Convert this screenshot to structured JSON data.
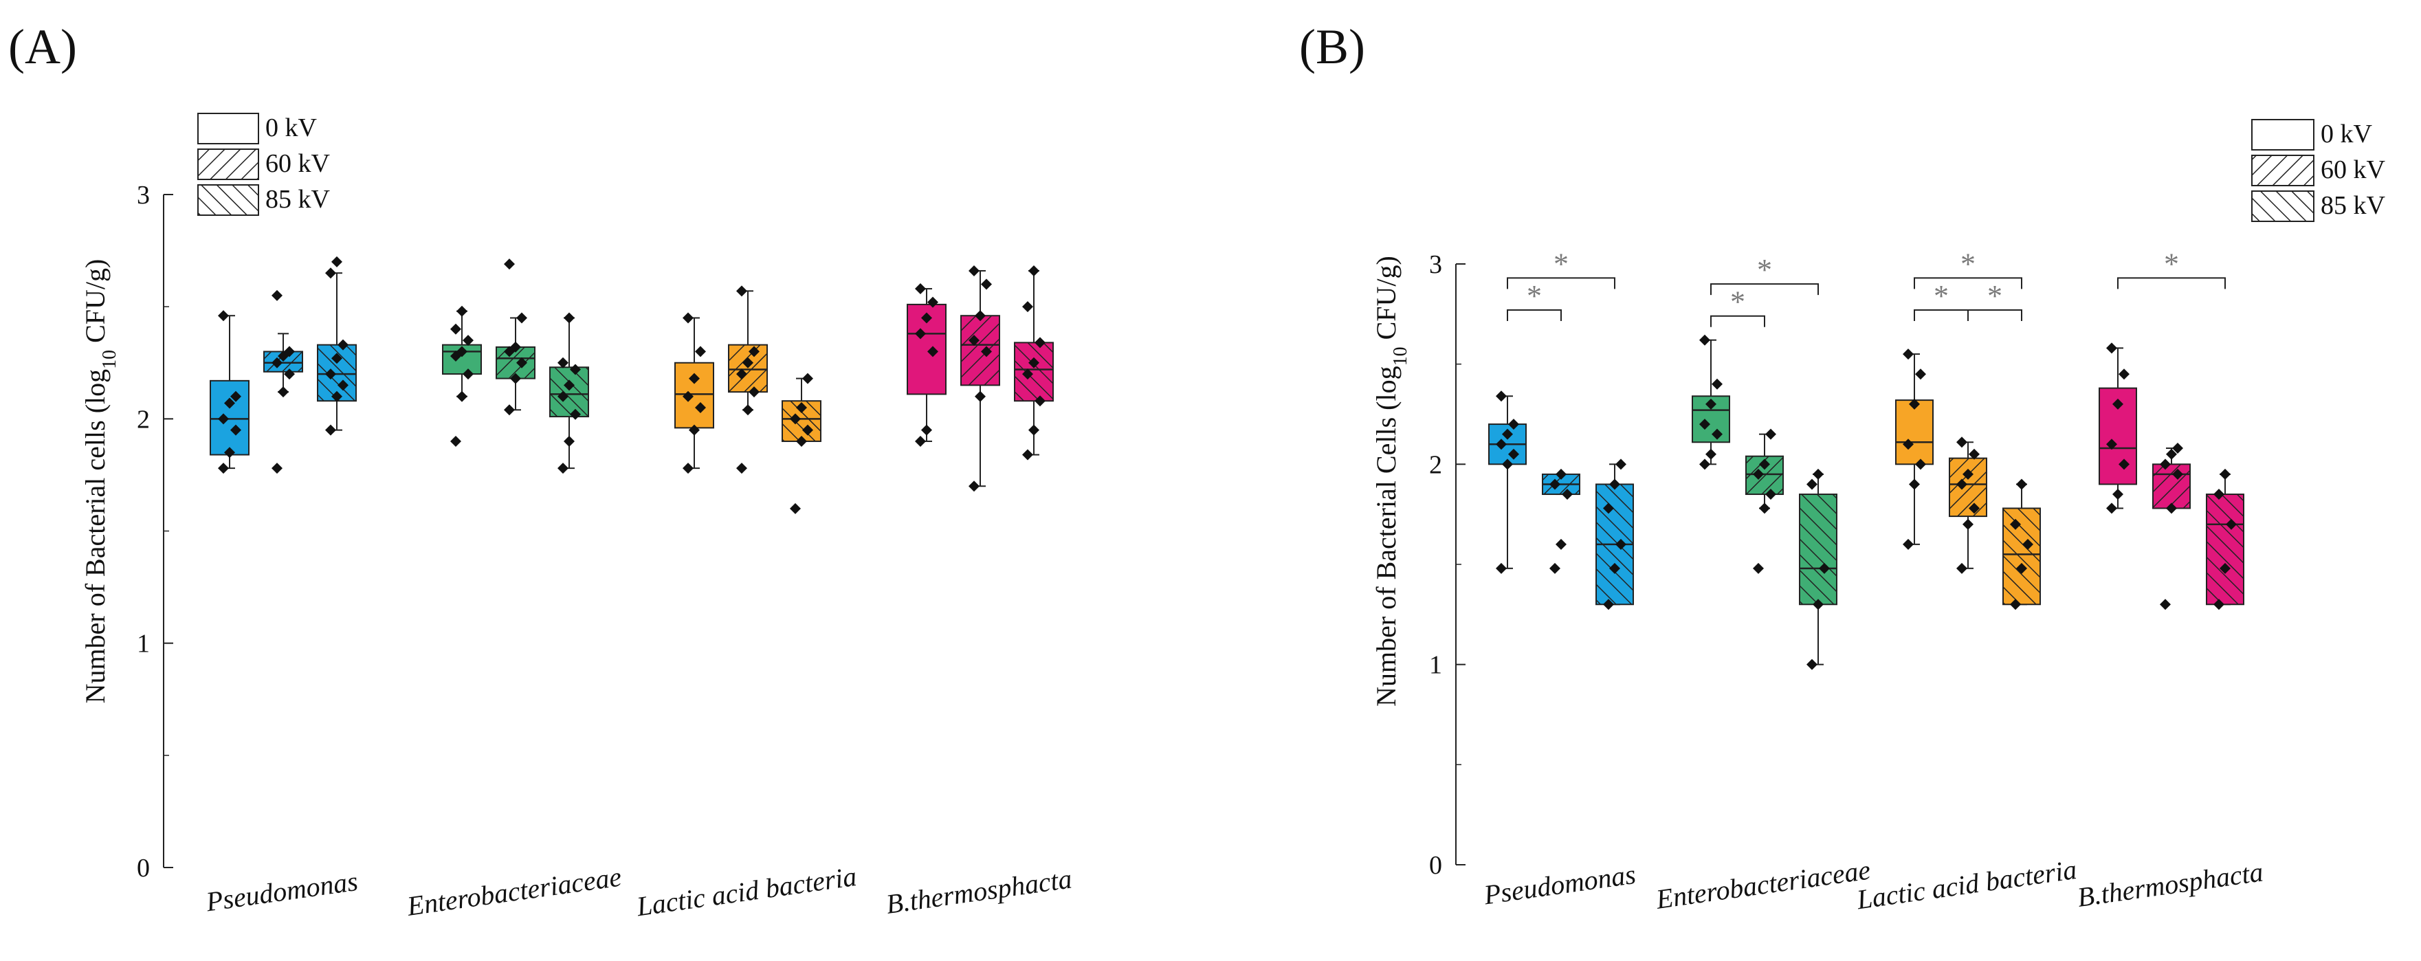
{
  "colors": {
    "Pseudomonas": "#1ba3e0",
    "Enterobacteriaceae": "#3fae74",
    "Lactic acid bacteria": "#f7a526",
    "B.thermosphacta": "#e0177b"
  },
  "chart_data": [
    {
      "panel": "(A)",
      "type": "box",
      "ylabel_main": "Number of Bacterial cells (log",
      "ylabel_sub": "10",
      "ylabel_tail": " CFU/g)",
      "ylim": [
        0,
        3
      ],
      "yticks": [
        "0",
        "1",
        "2",
        "3"
      ],
      "legend_position": "top-left",
      "legend": [
        "0 kV",
        "60 kV",
        "85 kV"
      ],
      "categories": [
        "Pseudomonas",
        "Enterobacteriaceae",
        "Lactic acid bacteria",
        "B.thermosphacta"
      ],
      "boxes": [
        {
          "category": "Pseudomonas",
          "voltage": "0 kV",
          "whisker_low": 1.78,
          "q1": 1.84,
          "median": 2.0,
          "q3": 2.17,
          "whisker_high": 2.46,
          "points": [
            1.78,
            1.85,
            1.95,
            2.0,
            2.07,
            2.1,
            2.46
          ]
        },
        {
          "category": "Pseudomonas",
          "voltage": "60 kV",
          "whisker_low": 2.12,
          "q1": 2.21,
          "median": 2.25,
          "q3": 2.3,
          "whisker_high": 2.38,
          "points": [
            1.78,
            2.12,
            2.2,
            2.25,
            2.28,
            2.3,
            2.55
          ]
        },
        {
          "category": "Pseudomonas",
          "voltage": "85 kV",
          "whisker_low": 1.95,
          "q1": 2.08,
          "median": 2.2,
          "q3": 2.33,
          "whisker_high": 2.65,
          "points": [
            1.95,
            2.1,
            2.15,
            2.2,
            2.27,
            2.33,
            2.65,
            2.7
          ]
        },
        {
          "category": "Enterobacteriaceae",
          "voltage": "0 kV",
          "whisker_low": 2.1,
          "q1": 2.2,
          "median": 2.3,
          "q3": 2.33,
          "whisker_high": 2.48,
          "points": [
            1.9,
            2.1,
            2.2,
            2.28,
            2.3,
            2.35,
            2.4,
            2.48
          ]
        },
        {
          "category": "Enterobacteriaceae",
          "voltage": "60 kV",
          "whisker_low": 2.04,
          "q1": 2.18,
          "median": 2.27,
          "q3": 2.32,
          "whisker_high": 2.45,
          "points": [
            2.04,
            2.18,
            2.25,
            2.3,
            2.32,
            2.45,
            2.69
          ]
        },
        {
          "category": "Enterobacteriaceae",
          "voltage": "85 kV",
          "whisker_low": 1.78,
          "q1": 2.01,
          "median": 2.11,
          "q3": 2.23,
          "whisker_high": 2.45,
          "points": [
            1.78,
            1.9,
            2.02,
            2.1,
            2.15,
            2.22,
            2.25,
            2.45
          ]
        },
        {
          "category": "Lactic acid bacteria",
          "voltage": "0 kV",
          "whisker_low": 1.78,
          "q1": 1.96,
          "median": 2.11,
          "q3": 2.25,
          "whisker_high": 2.45,
          "points": [
            1.78,
            1.95,
            2.05,
            2.1,
            2.18,
            2.3,
            2.45
          ]
        },
        {
          "category": "Lactic acid bacteria",
          "voltage": "60 kV",
          "whisker_low": 2.04,
          "q1": 2.12,
          "median": 2.22,
          "q3": 2.33,
          "whisker_high": 2.57,
          "points": [
            1.78,
            2.04,
            2.12,
            2.2,
            2.25,
            2.3,
            2.57
          ]
        },
        {
          "category": "Lactic acid bacteria",
          "voltage": "85 kV",
          "whisker_low": 1.9,
          "q1": 1.9,
          "median": 2.0,
          "q3": 2.08,
          "whisker_high": 2.18,
          "points": [
            1.6,
            1.9,
            1.95,
            2.0,
            2.05,
            2.18
          ]
        },
        {
          "category": "B.thermosphacta",
          "voltage": "0 kV",
          "whisker_low": 1.9,
          "q1": 2.11,
          "median": 2.38,
          "q3": 2.51,
          "whisker_high": 2.58,
          "points": [
            1.9,
            1.95,
            2.3,
            2.38,
            2.45,
            2.52,
            2.58
          ]
        },
        {
          "category": "B.thermosphacta",
          "voltage": "60 kV",
          "whisker_low": 1.7,
          "q1": 2.15,
          "median": 2.33,
          "q3": 2.46,
          "whisker_high": 2.66,
          "points": [
            1.7,
            2.1,
            2.3,
            2.35,
            2.46,
            2.6,
            2.66
          ]
        },
        {
          "category": "B.thermosphacta",
          "voltage": "85 kV",
          "whisker_low": 1.84,
          "q1": 2.08,
          "median": 2.22,
          "q3": 2.34,
          "whisker_high": 2.66,
          "points": [
            1.84,
            1.95,
            2.08,
            2.2,
            2.25,
            2.34,
            2.5,
            2.66
          ]
        }
      ],
      "significance": []
    },
    {
      "panel": "(B)",
      "type": "box",
      "ylabel_main": "Number of Bacterial Cells (log",
      "ylabel_sub": "10",
      "ylabel_tail": " CFU/g)",
      "ylim": [
        0,
        3
      ],
      "yticks": [
        "0",
        "1",
        "2",
        "3"
      ],
      "legend_position": "top-right",
      "legend": [
        "0 kV",
        "60 kV",
        "85 kV"
      ],
      "categories": [
        "Pseudomonas",
        "Enterobacteriaceae",
        "Lactic acid bacteria",
        "B.thermosphacta"
      ],
      "boxes": [
        {
          "category": "Pseudomonas",
          "voltage": "0 kV",
          "whisker_low": 1.48,
          "q1": 2.0,
          "median": 2.1,
          "q3": 2.2,
          "whisker_high": 2.34,
          "points": [
            1.48,
            2.0,
            2.05,
            2.1,
            2.15,
            2.2,
            2.34
          ]
        },
        {
          "category": "Pseudomonas",
          "voltage": "60 kV",
          "whisker_low": 1.85,
          "q1": 1.85,
          "median": 1.9,
          "q3": 1.95,
          "whisker_high": 1.95,
          "points": [
            1.48,
            1.6,
            1.85,
            1.9,
            1.95
          ]
        },
        {
          "category": "Pseudomonas",
          "voltage": "85 kV",
          "whisker_low": 1.3,
          "q1": 1.3,
          "median": 1.6,
          "q3": 1.9,
          "whisker_high": 2.0,
          "points": [
            1.3,
            1.48,
            1.6,
            1.78,
            1.9,
            2.0
          ]
        },
        {
          "category": "Enterobacteriaceae",
          "voltage": "0 kV",
          "whisker_low": 2.0,
          "q1": 2.11,
          "median": 2.27,
          "q3": 2.34,
          "whisker_high": 2.62,
          "points": [
            2.0,
            2.05,
            2.15,
            2.2,
            2.3,
            2.4,
            2.62
          ]
        },
        {
          "category": "Enterobacteriaceae",
          "voltage": "60 kV",
          "whisker_low": 1.78,
          "q1": 1.85,
          "median": 1.95,
          "q3": 2.04,
          "whisker_high": 2.15,
          "points": [
            1.48,
            1.78,
            1.85,
            1.95,
            2.0,
            2.15
          ]
        },
        {
          "category": "Enterobacteriaceae",
          "voltage": "85 kV",
          "whisker_low": 1.0,
          "q1": 1.3,
          "median": 1.48,
          "q3": 1.85,
          "whisker_high": 1.95,
          "points": [
            1.0,
            1.3,
            1.48,
            1.9,
            1.95
          ]
        },
        {
          "category": "Lactic acid bacteria",
          "voltage": "0 kV",
          "whisker_low": 1.6,
          "q1": 2.0,
          "median": 2.11,
          "q3": 2.32,
          "whisker_high": 2.55,
          "points": [
            1.6,
            1.9,
            2.0,
            2.1,
            2.3,
            2.45,
            2.55
          ]
        },
        {
          "category": "Lactic acid bacteria",
          "voltage": "60 kV",
          "whisker_low": 1.48,
          "q1": 1.74,
          "median": 1.9,
          "q3": 2.03,
          "whisker_high": 2.11,
          "points": [
            1.48,
            1.7,
            1.78,
            1.9,
            1.95,
            2.05,
            2.11
          ]
        },
        {
          "category": "Lactic acid bacteria",
          "voltage": "85 kV",
          "whisker_low": 1.3,
          "q1": 1.3,
          "median": 1.55,
          "q3": 1.78,
          "whisker_high": 1.9,
          "points": [
            1.3,
            1.48,
            1.6,
            1.7,
            1.9
          ]
        },
        {
          "category": "B.thermosphacta",
          "voltage": "0 kV",
          "whisker_low": 1.78,
          "q1": 1.9,
          "median": 2.08,
          "q3": 2.38,
          "whisker_high": 2.58,
          "points": [
            1.78,
            1.85,
            2.0,
            2.1,
            2.3,
            2.45,
            2.58
          ]
        },
        {
          "category": "B.thermosphacta",
          "voltage": "60 kV",
          "whisker_low": 1.78,
          "q1": 1.78,
          "median": 1.95,
          "q3": 2.0,
          "whisker_high": 2.08,
          "points": [
            1.3,
            1.78,
            1.95,
            2.0,
            2.05,
            2.08
          ]
        },
        {
          "category": "B.thermosphacta",
          "voltage": "85 kV",
          "whisker_low": 1.3,
          "q1": 1.3,
          "median": 1.7,
          "q3": 1.85,
          "whisker_high": 1.95,
          "points": [
            1.3,
            1.48,
            1.7,
            1.85,
            1.95
          ]
        }
      ],
      "significance": [
        {
          "category": "Pseudomonas",
          "from": 0,
          "to": 2,
          "level": 2.93,
          "label": "*"
        },
        {
          "category": "Pseudomonas",
          "from": 0,
          "to": 1,
          "level": 2.77,
          "label": "*"
        },
        {
          "category": "Enterobacteriaceae",
          "from": 0,
          "to": 2,
          "level": 2.9,
          "label": "*"
        },
        {
          "category": "Enterobacteriaceae",
          "from": 0,
          "to": 1,
          "level": 2.74,
          "label": "*"
        },
        {
          "category": "Lactic acid bacteria",
          "from": 0,
          "to": 2,
          "level": 2.93,
          "label": "*"
        },
        {
          "category": "Lactic acid bacteria",
          "from": 0,
          "to": 1,
          "level": 2.77,
          "label": "*"
        },
        {
          "category": "Lactic acid bacteria",
          "from": 1,
          "to": 2,
          "level": 2.77,
          "label": "*"
        },
        {
          "category": "B.thermosphacta",
          "from": 0,
          "to": 2,
          "level": 2.93,
          "label": "*"
        }
      ]
    }
  ]
}
